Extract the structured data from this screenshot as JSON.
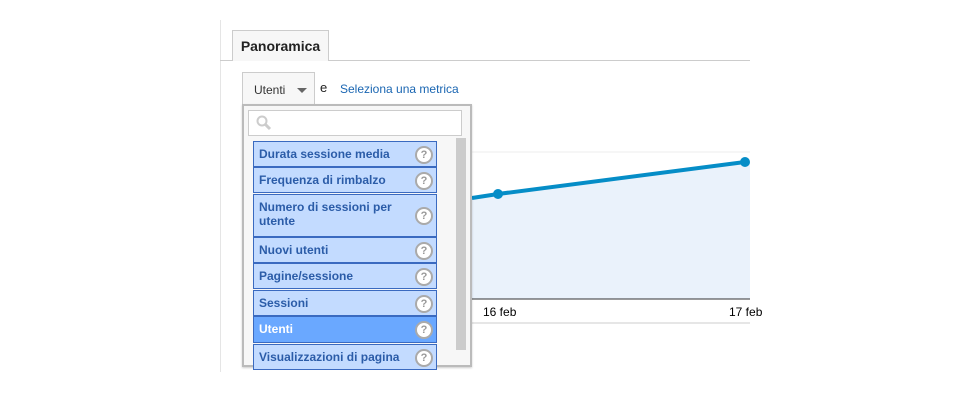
{
  "tabs": [
    {
      "label": "Panoramica"
    }
  ],
  "metric_selector": {
    "selected": "Utenti",
    "conjunction": "e",
    "secondary_link": "Seleziona una metrica",
    "search_placeholder": ""
  },
  "dropdown_items": [
    {
      "label": "Durata sessione media",
      "selected": false
    },
    {
      "label": "Frequenza di rimbalzo",
      "selected": false
    },
    {
      "label": "Numero di sessioni per utente",
      "selected": false
    },
    {
      "label": "Nuovi utenti",
      "selected": false
    },
    {
      "label": "Pagine/sessione",
      "selected": false
    },
    {
      "label": "Sessioni",
      "selected": false
    },
    {
      "label": "Utenti",
      "selected": true
    },
    {
      "label": "Visualizzazioni di pagina",
      "selected": false
    }
  ],
  "chart_data": {
    "type": "area",
    "x_labels": [
      "16 feb",
      "17 feb"
    ],
    "line_color": "#058dc7",
    "fill_color": "#e8f1fa",
    "grid": true
  },
  "colors": {
    "link": "#1a66b2",
    "item_bg": "#c3dbff",
    "item_selected_bg": "#6aa8ff"
  }
}
